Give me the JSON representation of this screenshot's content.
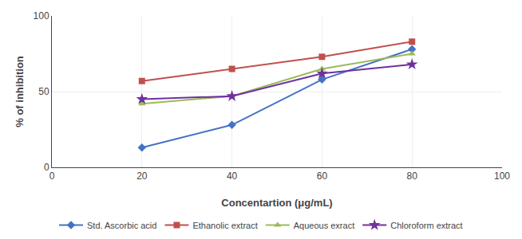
{
  "chart_data": {
    "type": "line",
    "x": [
      20,
      40,
      60,
      80
    ],
    "series": [
      {
        "name": "Std. Ascorbic acid",
        "color": "#4472C4",
        "marker": "diamond",
        "values": [
          13,
          28,
          58,
          78
        ]
      },
      {
        "name": "Ethanolic extract",
        "color": "#C0504D",
        "marker": "square",
        "values": [
          57,
          65,
          73,
          83
        ]
      },
      {
        "name": "Aqueous exract",
        "color": "#9BBB59",
        "marker": "triangle-up",
        "values": [
          42,
          47,
          65,
          75
        ]
      },
      {
        "name": "Chloroform extract",
        "color": "#7030A0",
        "marker": "star",
        "values": [
          45,
          47,
          62,
          68
        ]
      }
    ],
    "xlabel": "Concentartion (μg/mL)",
    "ylabel": "% of inhibition",
    "xlim": [
      0,
      100
    ],
    "ylim": [
      0,
      100
    ],
    "xticks": [
      0,
      20,
      40,
      60,
      80,
      100
    ],
    "yticks": [
      0,
      50,
      100
    ],
    "grid": true,
    "legend": "bottom"
  }
}
